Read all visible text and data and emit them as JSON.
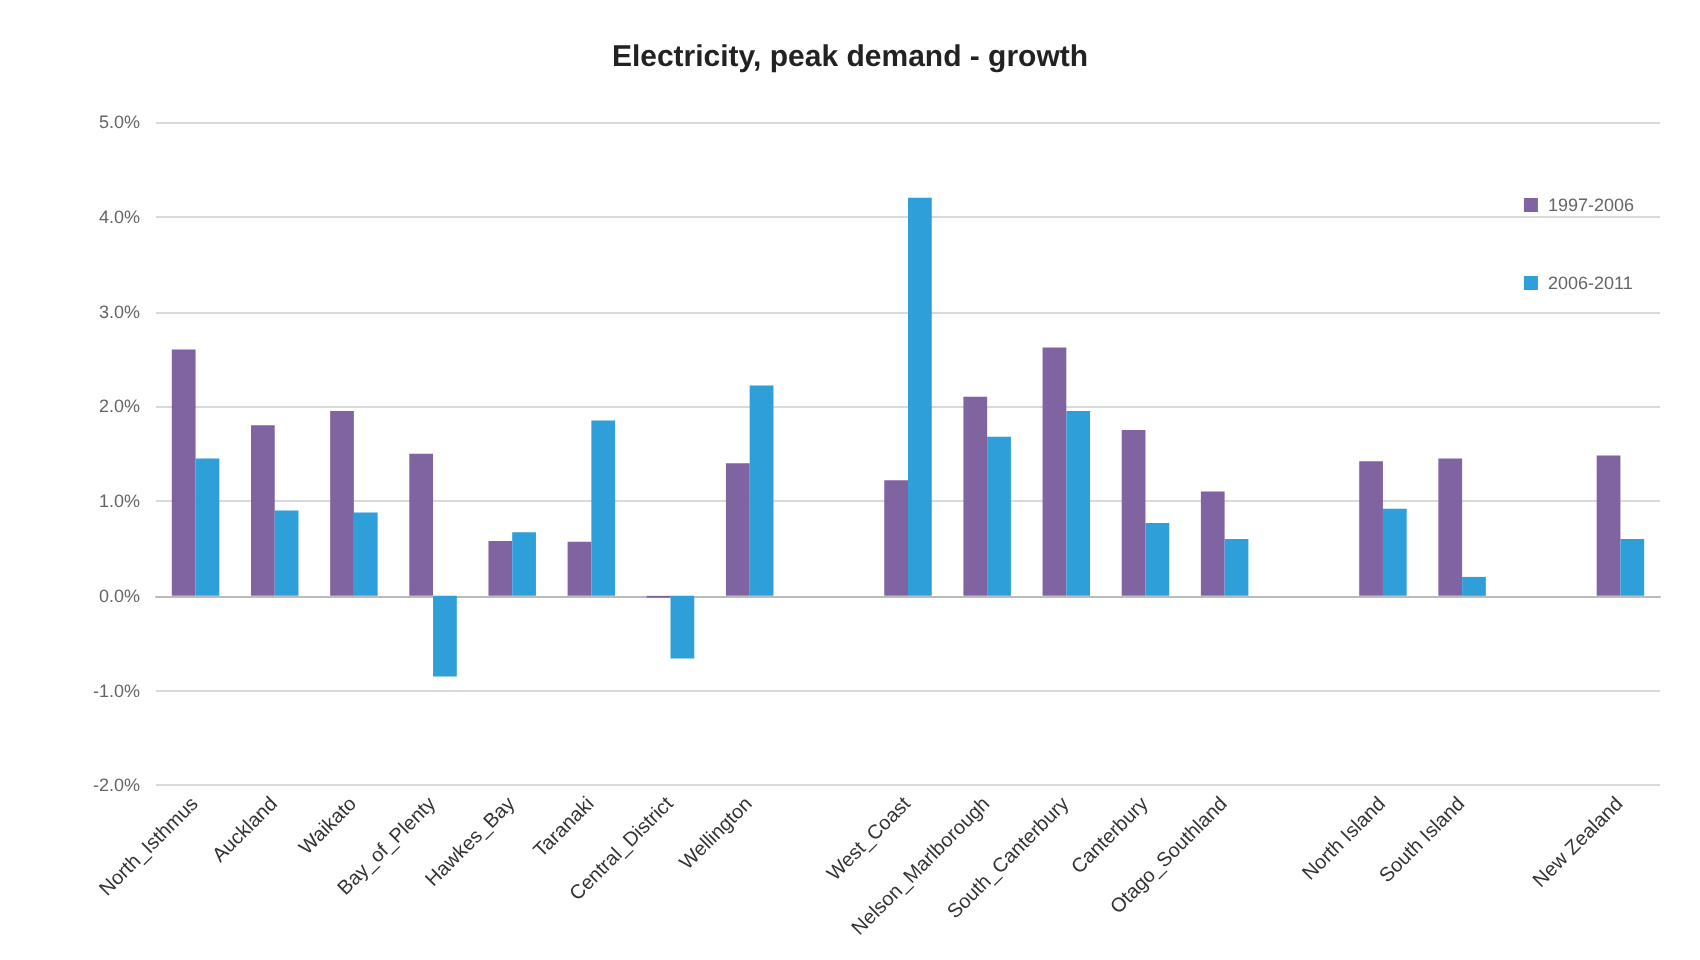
{
  "chart_data": {
    "type": "bar",
    "title": "Electricity, peak demand - growth",
    "categories": [
      "North_Isthmus",
      "Auckland",
      "Waikato",
      "Bay_of_Plenty",
      "Hawkes_Bay",
      "Taranaki",
      "Central_District",
      "Wellington",
      null,
      "West_Coast",
      "Nelson_Marlborough",
      "South_Canterbury",
      "Canterbury",
      "Otago_Southland",
      null,
      "North Island",
      "South Island",
      null,
      "New Zealand"
    ],
    "series": [
      {
        "name": "1997-2006",
        "color": "#8064a2",
        "values": [
          2.6,
          1.8,
          1.95,
          1.5,
          0.58,
          0.57,
          -0.02,
          1.4,
          null,
          1.22,
          2.1,
          2.62,
          1.75,
          1.1,
          null,
          1.42,
          1.45,
          null,
          1.48
        ]
      },
      {
        "name": "2006-2011",
        "color": "#2e9fd8",
        "values": [
          1.45,
          0.9,
          0.88,
          -0.85,
          0.67,
          1.85,
          -0.66,
          2.22,
          null,
          4.2,
          1.68,
          1.95,
          0.77,
          0.6,
          null,
          0.92,
          0.2,
          null,
          0.6
        ]
      }
    ],
    "ylim": [
      -2,
      5
    ],
    "yticks": [
      {
        "value": -2,
        "label": "-2.0%"
      },
      {
        "value": -1,
        "label": "-1.0%"
      },
      {
        "value": 0,
        "label": "0.0%"
      },
      {
        "value": 1,
        "label": "1.0%"
      },
      {
        "value": 2,
        "label": "2.0%"
      },
      {
        "value": 3,
        "label": "3.0%"
      },
      {
        "value": 4,
        "label": "4.0%"
      },
      {
        "value": 5,
        "label": "5.0%"
      }
    ],
    "grid": "y",
    "legend": "top right"
  }
}
